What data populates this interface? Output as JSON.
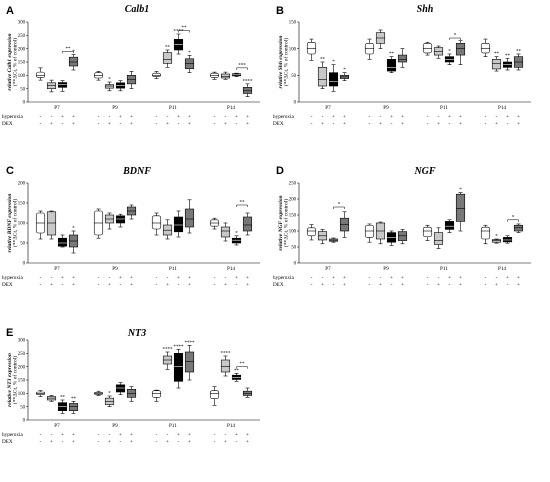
{
  "figure": {
    "ages": [
      "P7",
      "P9",
      "P11",
      "P14"
    ],
    "condition_rows": [
      {
        "label": "hyperoxia",
        "signs": [
          "-",
          "-",
          "+",
          "+"
        ]
      },
      {
        "label": "DEX",
        "signs": [
          "-",
          "+",
          "-",
          "+"
        ]
      }
    ],
    "group_fills": [
      "#ffffff",
      "#c8c8c8",
      "#000000",
      "#787878"
    ]
  },
  "chart_data": [
    {
      "panel": "A",
      "title": "Calb1",
      "type": "box",
      "ylabel_top": "relative Calb1 expression",
      "ylabel_bottom": "(**ΔCt, % of control)",
      "ylim": [
        0,
        300
      ],
      "yticks": [
        "0",
        "50",
        "100",
        "150",
        "200",
        "250",
        "300"
      ],
      "groups": [
        {
          "age": "P7",
          "boxes": [
            {
              "min": 82,
              "q1": 92,
              "median": 100,
              "q3": 112,
              "max": 128,
              "stars": ""
            },
            {
              "min": 38,
              "q1": 50,
              "median": 62,
              "q3": 72,
              "max": 82,
              "stars": ""
            },
            {
              "min": 40,
              "q1": 55,
              "median": 65,
              "q3": 73,
              "max": 80,
              "stars": ""
            },
            {
              "min": 120,
              "q1": 135,
              "median": 150,
              "q3": 168,
              "max": 178,
              "stars": "*"
            }
          ]
        },
        {
          "age": "P9",
          "boxes": [
            {
              "min": 82,
              "q1": 90,
              "median": 100,
              "q3": 110,
              "max": 115,
              "stars": ""
            },
            {
              "min": 42,
              "q1": 52,
              "median": 60,
              "q3": 65,
              "max": 75,
              "stars": "*"
            },
            {
              "min": 42,
              "q1": 52,
              "median": 62,
              "q3": 72,
              "max": 80,
              "stars": ""
            },
            {
              "min": 50,
              "q1": 68,
              "median": 85,
              "q3": 100,
              "max": 115,
              "stars": ""
            }
          ]
        },
        {
          "age": "P11",
          "boxes": [
            {
              "min": 88,
              "q1": 95,
              "median": 100,
              "q3": 108,
              "max": 115,
              "stars": ""
            },
            {
              "min": 130,
              "q1": 145,
              "median": 160,
              "q3": 185,
              "max": 195,
              "stars": "**"
            },
            {
              "min": 180,
              "q1": 195,
              "median": 215,
              "q3": 235,
              "max": 255,
              "stars": "****"
            },
            {
              "min": 110,
              "q1": 125,
              "median": 145,
              "q3": 162,
              "max": 175,
              "stars": "*"
            }
          ]
        },
        {
          "age": "P14",
          "boxes": [
            {
              "min": 85,
              "q1": 92,
              "median": 100,
              "q3": 108,
              "max": 112,
              "stars": ""
            },
            {
              "min": 85,
              "q1": 90,
              "median": 95,
              "q3": 105,
              "max": 112,
              "stars": ""
            },
            {
              "min": 95,
              "q1": 98,
              "median": 102,
              "q3": 106,
              "max": 108,
              "stars": ""
            },
            {
              "min": 20,
              "q1": 32,
              "median": 42,
              "q3": 55,
              "max": 68,
              "stars": "****"
            }
          ]
        }
      ],
      "brackets": [
        {
          "age": "P7",
          "from": 2,
          "to": 3,
          "y": 190,
          "label": "**"
        },
        {
          "age": "P11",
          "from": 2,
          "to": 3,
          "y": 268,
          "label": "**"
        },
        {
          "age": "P14",
          "from": 2,
          "to": 3,
          "y": 128,
          "label": "***"
        }
      ]
    },
    {
      "panel": "B",
      "title": "Shh",
      "type": "box",
      "ylabel_top": "relative Shh expression",
      "ylabel_bottom": "(**ΔCt, % of control)",
      "ylim": [
        0,
        150
      ],
      "yticks": [
        "0",
        "50",
        "100",
        "150"
      ],
      "groups": [
        {
          "age": "P7",
          "boxes": [
            {
              "min": 78,
              "q1": 90,
              "median": 100,
              "q3": 112,
              "max": 118,
              "stars": ""
            },
            {
              "min": 25,
              "q1": 30,
              "median": 42,
              "q3": 65,
              "max": 75,
              "stars": "**"
            },
            {
              "min": 20,
              "q1": 30,
              "median": 38,
              "q3": 55,
              "max": 70,
              "stars": "*"
            },
            {
              "min": 40,
              "q1": 44,
              "median": 47,
              "q3": 50,
              "max": 55,
              "stars": "*"
            }
          ]
        },
        {
          "age": "P9",
          "boxes": [
            {
              "min": 80,
              "q1": 90,
              "median": 100,
              "q3": 110,
              "max": 118,
              "stars": ""
            },
            {
              "min": 100,
              "q1": 110,
              "median": 120,
              "q3": 130,
              "max": 135,
              "stars": ""
            },
            {
              "min": 55,
              "q1": 58,
              "median": 65,
              "q3": 80,
              "max": 85,
              "stars": "**"
            },
            {
              "min": 65,
              "q1": 75,
              "median": 80,
              "q3": 88,
              "max": 100,
              "stars": ""
            }
          ]
        },
        {
          "age": "P11",
          "boxes": [
            {
              "min": 88,
              "q1": 92,
              "median": 100,
              "q3": 110,
              "max": 112,
              "stars": ""
            },
            {
              "min": 82,
              "q1": 88,
              "median": 95,
              "q3": 102,
              "max": 105,
              "stars": ""
            },
            {
              "min": 70,
              "q1": 75,
              "median": 80,
              "q3": 85,
              "max": 90,
              "stars": "*"
            },
            {
              "min": 70,
              "q1": 88,
              "median": 100,
              "q3": 110,
              "max": 115,
              "stars": ""
            }
          ]
        },
        {
          "age": "P14",
          "boxes": [
            {
              "min": 85,
              "q1": 92,
              "median": 100,
              "q3": 110,
              "max": 118,
              "stars": ""
            },
            {
              "min": 58,
              "q1": 62,
              "median": 72,
              "q3": 80,
              "max": 85,
              "stars": "**"
            },
            {
              "min": 60,
              "q1": 65,
              "median": 70,
              "q3": 75,
              "max": 82,
              "stars": "**"
            },
            {
              "min": 60,
              "q1": 65,
              "median": 75,
              "q3": 85,
              "max": 90,
              "stars": "**"
            }
          ]
        }
      ],
      "brackets": [
        {
          "age": "P11",
          "from": 2,
          "to": 3,
          "y": 120,
          "label": "*"
        }
      ]
    },
    {
      "panel": "C",
      "title": "BDNF",
      "type": "box",
      "ylabel_top": "relative BDNF expression",
      "ylabel_bottom": "(**ΔCt, % of control)",
      "ylim": [
        0,
        200
      ],
      "yticks": [
        "0",
        "50",
        "100",
        "150",
        "200"
      ],
      "groups": [
        {
          "age": "P7",
          "boxes": [
            {
              "min": 60,
              "q1": 75,
              "median": 100,
              "q3": 125,
              "max": 130,
              "stars": ""
            },
            {
              "min": 60,
              "q1": 70,
              "median": 100,
              "q3": 128,
              "max": 130,
              "stars": ""
            },
            {
              "min": 40,
              "q1": 42,
              "median": 50,
              "q3": 62,
              "max": 70,
              "stars": ""
            },
            {
              "min": 25,
              "q1": 40,
              "median": 55,
              "q3": 70,
              "max": 80,
              "stars": "*"
            }
          ]
        },
        {
          "age": "P9",
          "boxes": [
            {
              "min": 62,
              "q1": 70,
              "median": 100,
              "q3": 130,
              "max": 135,
              "stars": ""
            },
            {
              "min": 85,
              "q1": 100,
              "median": 110,
              "q3": 120,
              "max": 125,
              "stars": ""
            },
            {
              "min": 90,
              "q1": 100,
              "median": 110,
              "q3": 118,
              "max": 122,
              "stars": ""
            },
            {
              "min": 110,
              "q1": 120,
              "median": 130,
              "q3": 140,
              "max": 145,
              "stars": ""
            }
          ]
        },
        {
          "age": "P11",
          "boxes": [
            {
              "min": 70,
              "q1": 85,
              "median": 100,
              "q3": 118,
              "max": 125,
              "stars": ""
            },
            {
              "min": 60,
              "q1": 70,
              "median": 82,
              "q3": 95,
              "max": 108,
              "stars": ""
            },
            {
              "min": 65,
              "q1": 78,
              "median": 95,
              "q3": 115,
              "max": 130,
              "stars": ""
            },
            {
              "min": 75,
              "q1": 90,
              "median": 110,
              "q3": 135,
              "max": 158,
              "stars": ""
            }
          ]
        },
        {
          "age": "P14",
          "boxes": [
            {
              "min": 85,
              "q1": 92,
              "median": 100,
              "q3": 108,
              "max": 112,
              "stars": ""
            },
            {
              "min": 55,
              "q1": 65,
              "median": 80,
              "q3": 90,
              "max": 100,
              "stars": ""
            },
            {
              "min": 45,
              "q1": 50,
              "median": 57,
              "q3": 62,
              "max": 68,
              "stars": "*"
            },
            {
              "min": 70,
              "q1": 80,
              "median": 95,
              "q3": 115,
              "max": 125,
              "stars": ""
            }
          ]
        }
      ],
      "brackets": [
        {
          "age": "P14",
          "from": 2,
          "to": 3,
          "y": 145,
          "label": "**"
        }
      ]
    },
    {
      "panel": "D",
      "title": "NGF",
      "type": "box",
      "ylabel_top": "relative NGF expression",
      "ylabel_bottom": "(**ΔCt, % of control)",
      "ylim": [
        0,
        250
      ],
      "yticks": [
        "0",
        "50",
        "100",
        "150",
        "200",
        "250"
      ],
      "groups": [
        {
          "age": "P7",
          "boxes": [
            {
              "min": 72,
              "q1": 85,
              "median": 100,
              "q3": 110,
              "max": 120,
              "stars": ""
            },
            {
              "min": 60,
              "q1": 72,
              "median": 85,
              "q3": 98,
              "max": 105,
              "stars": ""
            },
            {
              "min": 65,
              "q1": 68,
              "median": 72,
              "q3": 75,
              "max": 78,
              "stars": ""
            },
            {
              "min": 80,
              "q1": 100,
              "median": 120,
              "q3": 140,
              "max": 160,
              "stars": ""
            }
          ]
        },
        {
          "age": "P9",
          "boxes": [
            {
              "min": 65,
              "q1": 80,
              "median": 100,
              "q3": 118,
              "max": 122,
              "stars": ""
            },
            {
              "min": 60,
              "q1": 75,
              "median": 100,
              "q3": 125,
              "max": 128,
              "stars": ""
            },
            {
              "min": 55,
              "q1": 65,
              "median": 80,
              "q3": 95,
              "max": 100,
              "stars": ""
            },
            {
              "min": 60,
              "q1": 70,
              "median": 85,
              "q3": 98,
              "max": 105,
              "stars": ""
            }
          ]
        },
        {
          "age": "P11",
          "boxes": [
            {
              "min": 70,
              "q1": 82,
              "median": 100,
              "q3": 112,
              "max": 118,
              "stars": ""
            },
            {
              "min": 45,
              "q1": 58,
              "median": 70,
              "q3": 95,
              "max": 110,
              "stars": ""
            },
            {
              "min": 95,
              "q1": 105,
              "median": 115,
              "q3": 130,
              "max": 135,
              "stars": ""
            },
            {
              "min": 100,
              "q1": 130,
              "median": 170,
              "q3": 215,
              "max": 220,
              "stars": "*"
            }
          ]
        },
        {
          "age": "P14",
          "boxes": [
            {
              "min": 60,
              "q1": 75,
              "median": 100,
              "q3": 112,
              "max": 118,
              "stars": ""
            },
            {
              "min": 62,
              "q1": 65,
              "median": 70,
              "q3": 73,
              "max": 75,
              "stars": "*"
            },
            {
              "min": 62,
              "q1": 66,
              "median": 72,
              "q3": 80,
              "max": 85,
              "stars": ""
            },
            {
              "min": 95,
              "q1": 100,
              "median": 110,
              "q3": 118,
              "max": 122,
              "stars": ""
            }
          ]
        }
      ],
      "brackets": [
        {
          "age": "P7",
          "from": 2,
          "to": 3,
          "y": 175,
          "label": "*"
        },
        {
          "age": "P14",
          "from": 2,
          "to": 3,
          "y": 135,
          "label": "*"
        }
      ]
    },
    {
      "panel": "E",
      "title": "NT3",
      "type": "box",
      "ylabel_top": "relative NT3 expression",
      "ylabel_bottom": "(**ΔCt, % of control)",
      "ylim": [
        0,
        300
      ],
      "yticks": [
        "0",
        "50",
        "100",
        "150",
        "200",
        "250",
        "300"
      ],
      "groups": [
        {
          "age": "P7",
          "boxes": [
            {
              "min": 88,
              "q1": 95,
              "median": 100,
              "q3": 105,
              "max": 110,
              "stars": ""
            },
            {
              "min": 70,
              "q1": 75,
              "median": 82,
              "q3": 88,
              "max": 92,
              "stars": ""
            },
            {
              "min": 25,
              "q1": 35,
              "median": 50,
              "q3": 65,
              "max": 75,
              "stars": "**"
            },
            {
              "min": 25,
              "q1": 35,
              "median": 50,
              "q3": 62,
              "max": 70,
              "stars": "**"
            }
          ]
        },
        {
          "age": "P9",
          "boxes": [
            {
              "min": 92,
              "q1": 96,
              "median": 100,
              "q3": 104,
              "max": 108,
              "stars": ""
            },
            {
              "min": 50,
              "q1": 58,
              "median": 70,
              "q3": 82,
              "max": 90,
              "stars": "*"
            },
            {
              "min": 95,
              "q1": 105,
              "median": 120,
              "q3": 132,
              "max": 140,
              "stars": ""
            },
            {
              "min": 70,
              "q1": 85,
              "median": 100,
              "q3": 115,
              "max": 125,
              "stars": ""
            }
          ]
        },
        {
          "age": "P11",
          "boxes": [
            {
              "min": 70,
              "q1": 85,
              "median": 100,
              "q3": 110,
              "max": 112,
              "stars": ""
            },
            {
              "min": 190,
              "q1": 210,
              "median": 225,
              "q3": 240,
              "max": 255,
              "stars": "****"
            },
            {
              "min": 120,
              "q1": 145,
              "median": 200,
              "q3": 250,
              "max": 265,
              "stars": "****"
            },
            {
              "min": 150,
              "q1": 180,
              "median": 220,
              "q3": 255,
              "max": 280,
              "stars": "****"
            }
          ]
        },
        {
          "age": "P14",
          "boxes": [
            {
              "min": 55,
              "q1": 80,
              "median": 100,
              "q3": 110,
              "max": 125,
              "stars": ""
            },
            {
              "min": 165,
              "q1": 180,
              "median": 200,
              "q3": 225,
              "max": 240,
              "stars": "****"
            },
            {
              "min": 145,
              "q1": 152,
              "median": 160,
              "q3": 168,
              "max": 175,
              "stars": "**"
            },
            {
              "min": 85,
              "q1": 92,
              "median": 100,
              "q3": 108,
              "max": 120,
              "stars": ""
            }
          ]
        }
      ],
      "brackets": [
        {
          "age": "P14",
          "from": 2,
          "to": 3,
          "y": 200,
          "label": "**"
        }
      ]
    }
  ]
}
